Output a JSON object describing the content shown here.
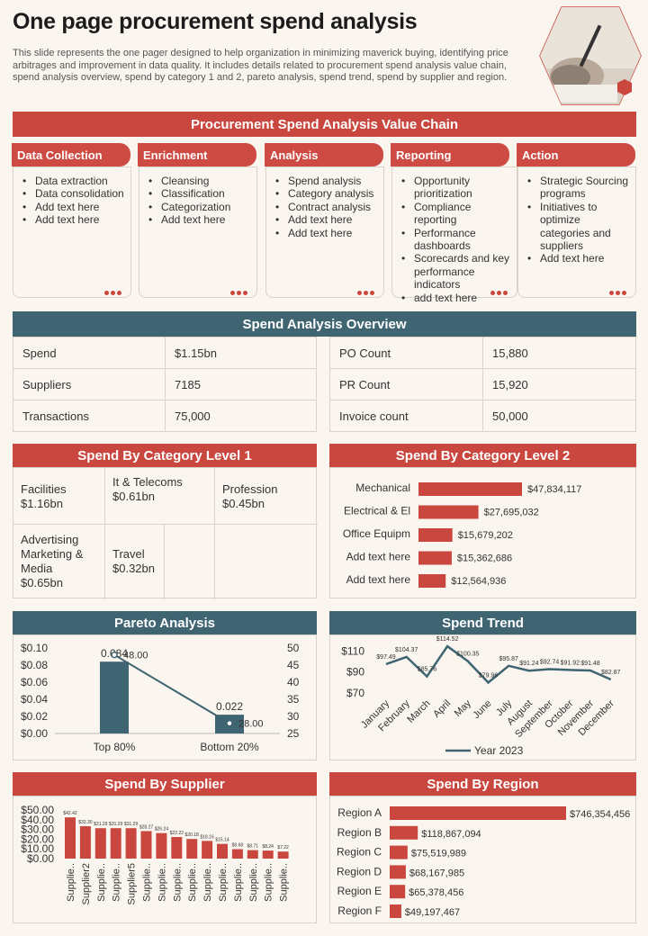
{
  "title": "One page procurement spend analysis",
  "intro": "This slide represents the one pager designed to help organization in minimizing maverick buying, identifying price arbitrages and improvement in data quality. It includes details related to procurement spend analysis value chain, spend analysis overview, spend by category 1 and 2, pareto analysis, spend trend, spend by supplier and region.",
  "value_chain": {
    "heading": "Procurement Spend Analysis Value Chain",
    "columns": [
      {
        "title": "Data Collection",
        "items": [
          "Data extraction",
          "Data consolidation",
          "Add text here",
          "Add text here"
        ]
      },
      {
        "title": "Enrichment",
        "items": [
          "Cleansing",
          "Classification",
          "Categorization",
          "Add text here"
        ]
      },
      {
        "title": "Analysis",
        "items": [
          "Spend analysis",
          "Category analysis",
          "Contract analysis",
          "Add text here",
          "Add text here"
        ]
      },
      {
        "title": "Reporting",
        "items": [
          "Opportunity prioritization",
          "Compliance reporting",
          "Performance dashboards",
          "Scorecards and key performance indicators",
          "add text here"
        ]
      },
      {
        "title": "Action",
        "items": [
          "Strategic Sourcing programs",
          "Initiatives to optimize categories and suppliers",
          "Add text here"
        ]
      }
    ]
  },
  "overview": {
    "heading": "Spend Analysis Overview",
    "left": [
      {
        "label": "Spend",
        "value": "$1.15bn"
      },
      {
        "label": "Suppliers",
        "value": "7185"
      },
      {
        "label": "Transactions",
        "value": "75,000"
      }
    ],
    "right": [
      {
        "label": "PO Count",
        "value": "15,880"
      },
      {
        "label": "PR Count",
        "value": "15,920"
      },
      {
        "label": "Invoice  count",
        "value": "50,000"
      }
    ]
  },
  "category1": {
    "heading": "Spend By Category Level 1",
    "cells": [
      {
        "name": "Facilities",
        "value": "$1.16bn"
      },
      {
        "name": "It & Telecoms",
        "value": "$0.61bn"
      },
      {
        "name": "Profession",
        "value": "$0.45bn"
      },
      {
        "name": "Advertising Marketing & Media",
        "value": "$0.65bn"
      },
      {
        "name": "Travel",
        "value": "$0.32bn"
      }
    ]
  },
  "colors": {
    "red": "#c9473f",
    "teal": "#3f6472",
    "line": "#3f6472"
  },
  "chart_data": [
    {
      "id": "category2",
      "type": "bar",
      "orientation": "horizontal",
      "title": "Spend By Category Level 2",
      "categories": [
        "Mechanical",
        "Electrical & El",
        "Office Equipm",
        "Add text here",
        "Add text here"
      ],
      "values": [
        47834117,
        27695032,
        15679202,
        15362686,
        12564936
      ],
      "labels": [
        "$47,834,117",
        "$27,695,032",
        "$15,679,202",
        "$15,362,686",
        "$12,564,936"
      ]
    },
    {
      "id": "pareto",
      "type": "bar",
      "title": "Pareto Analysis",
      "categories": [
        "Top 80%",
        "Bottom 20%"
      ],
      "series": [
        {
          "kind": "bar",
          "axis": "left",
          "values": [
            0.084,
            0.022
          ],
          "labels": [
            "0.084",
            "0.022"
          ]
        },
        {
          "kind": "line",
          "axis": "right",
          "values": [
            48.0,
            28.0
          ],
          "labels": [
            "48.00",
            "28.00"
          ]
        }
      ],
      "ylim": [
        0,
        0.1
      ],
      "y_ticks": [
        "$0.00",
        "$0.02",
        "$0.04",
        "$0.06",
        "$0.08",
        "$0.10"
      ],
      "y2lim": [
        25,
        50
      ],
      "y2_ticks": [
        "25",
        "30",
        "35",
        "40",
        "45",
        "50"
      ]
    },
    {
      "id": "trend",
      "type": "line",
      "title": "Spend Trend",
      "categories": [
        "January",
        "February",
        "March",
        "April",
        "May",
        "June",
        "July",
        "August",
        "September",
        "October",
        "November",
        "December"
      ],
      "series": [
        {
          "name": "Year 2023",
          "values": [
            97.49,
            104.37,
            85.76,
            114.52,
            100.35,
            79.96,
            95.87,
            91.24,
            92.74,
            91.92,
            91.48,
            82.87
          ]
        }
      ],
      "labels": [
        "$97.49",
        "$104.37",
        "$85.76",
        "$114.52",
        "$100.35",
        "$79.96",
        "$95.87",
        "$91.24",
        "$92.74",
        "$91.92",
        "$91.48",
        "$82.87"
      ],
      "ylim": [
        70,
        118
      ],
      "y_ticks": [
        {
          "v": 70,
          "t": "$70"
        },
        {
          "v": 90,
          "t": "$90"
        },
        {
          "v": 110,
          "t": "$110"
        }
      ],
      "legend": "bottom"
    },
    {
      "id": "supplier",
      "type": "bar",
      "title": "Spend By Supplier",
      "categories": [
        "Supplie..",
        "Supplier2",
        "Supplie..",
        "Supplie..",
        "Supplier5",
        "Supplie..",
        "Supplie..",
        "Supplie..",
        "Supplie..",
        "Supplie..",
        "Supplie..",
        "Supplie..",
        "Supplie..",
        "Supplie..",
        "Supplie.."
      ],
      "values": [
        42.42,
        33.3,
        31.29,
        31.29,
        31.29,
        28.27,
        26.24,
        22.22,
        20.18,
        18.16,
        15.14,
        9.68,
        8.71,
        8.24,
        7.22
      ],
      "labels": [
        "$42.42",
        "$33.30",
        "$31.29",
        "$31.29",
        "$31.29",
        "$28.27",
        "$26.24",
        "$22.22",
        "$20.18",
        "$18.16",
        "$15.14",
        "$9.68",
        "$8.71",
        "$8.24",
        "$7.22"
      ],
      "ylim": [
        0,
        50
      ],
      "y_ticks": [
        "$0.00",
        "$10.00",
        "$20.00",
        "$30.00",
        "$40.00",
        "$50.00"
      ]
    },
    {
      "id": "region",
      "type": "bar",
      "orientation": "horizontal",
      "title": "Spend By Region",
      "categories": [
        "Region A",
        "Region B",
        "Region C",
        "Region D",
        "Region E",
        "Region F"
      ],
      "values": [
        746354456,
        118867094,
        75519989,
        68167985,
        65378456,
        49197467
      ],
      "labels": [
        "$746,354,456",
        "$118,867,094",
        "$75,519,989",
        "$68,167,985",
        "$65,378,456",
        "$49,197,467"
      ]
    }
  ]
}
